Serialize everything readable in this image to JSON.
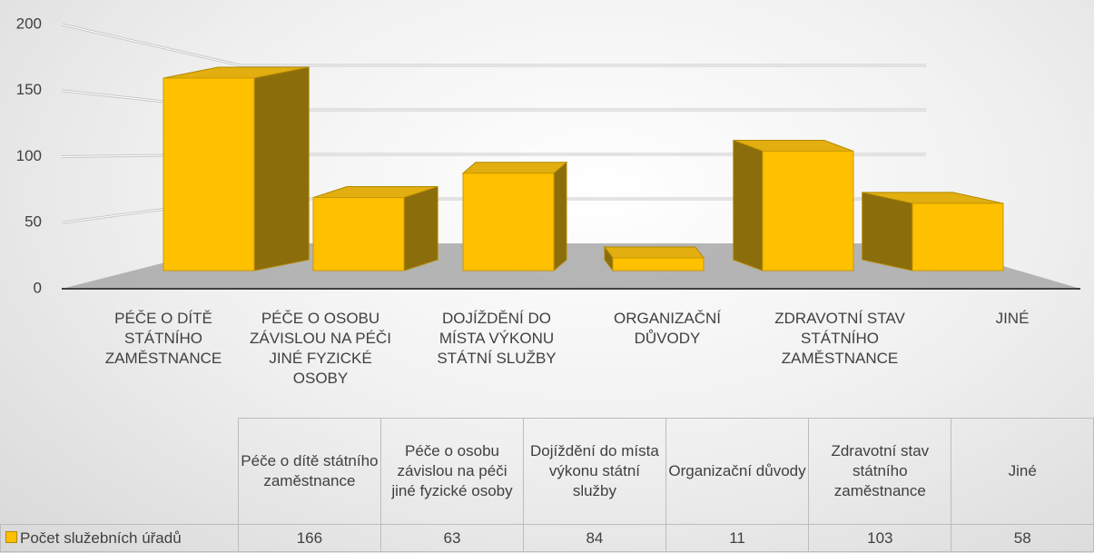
{
  "chart_data": {
    "type": "bar3d",
    "categories": [
      "PÉČE O DÍTĚ STÁTNÍHO ZAMĚSTNANCE",
      "PÉČE O OSOBU ZÁVISLOU NA PÉČI JINÉ FYZICKÉ OSOBY",
      "DOJÍŽDĚNÍ DO MÍSTA VÝKONU STÁTNÍ SLUŽBY",
      "ORGANIZAČNÍ DŮVODY",
      "ZDRAVOTNÍ STAV STÁTNÍHO ZAMĚSTNANCE",
      "JINÉ"
    ],
    "table_headers": [
      "Péče o dítě státního zaměstnance",
      "Péče o osobu závislou na péči jiné fyzické osoby",
      "Dojíždění do místa výkonu státní služby",
      "Organizační důvody",
      "Zdravotní stav státního zaměstnance",
      "Jiné"
    ],
    "series": [
      {
        "name": "Počet služebních úřadů",
        "color": "#ffc000",
        "values": [
          166,
          63,
          84,
          11,
          103,
          58
        ]
      }
    ],
    "ylim": [
      0,
      200
    ],
    "yticks": [
      0,
      50,
      100,
      150,
      200
    ],
    "grid": true
  }
}
